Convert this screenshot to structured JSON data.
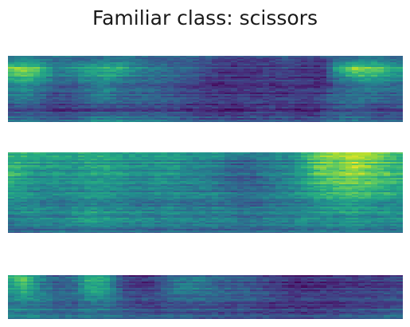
{
  "chart_data": {
    "type": "heatmap",
    "title": "Familiar class: scissors",
    "xlabel": "",
    "ylabel": "",
    "axes_visible": false,
    "colormap": "viridis",
    "panels": [
      {
        "name": "",
        "coarse_grid": [
          [
            0.3,
            0.35,
            0.3,
            0.35,
            0.3,
            0.25,
            0.3,
            0.35,
            0.3,
            0.25,
            0.25,
            0.3,
            0.25,
            0.2,
            0.2,
            0.2,
            0.2,
            0.25,
            0.2,
            0.2,
            0.25,
            0.25,
            0.3,
            0.3,
            0.25
          ],
          [
            0.75,
            0.85,
            0.7,
            0.4,
            0.5,
            0.6,
            0.65,
            0.6,
            0.45,
            0.4,
            0.35,
            0.3,
            0.25,
            0.15,
            0.15,
            0.15,
            0.2,
            0.2,
            0.15,
            0.1,
            0.6,
            0.85,
            0.8,
            0.7,
            0.55
          ],
          [
            0.55,
            0.6,
            0.5,
            0.35,
            0.35,
            0.45,
            0.5,
            0.4,
            0.35,
            0.35,
            0.3,
            0.25,
            0.2,
            0.15,
            0.15,
            0.2,
            0.2,
            0.2,
            0.2,
            0.15,
            0.3,
            0.45,
            0.5,
            0.45,
            0.4
          ],
          [
            0.35,
            0.4,
            0.3,
            0.2,
            0.25,
            0.35,
            0.4,
            0.3,
            0.3,
            0.3,
            0.25,
            0.2,
            0.15,
            0.15,
            0.15,
            0.15,
            0.15,
            0.15,
            0.15,
            0.2,
            0.3,
            0.35,
            0.35,
            0.3,
            0.3
          ],
          [
            0.2,
            0.25,
            0.2,
            0.15,
            0.15,
            0.2,
            0.2,
            0.2,
            0.2,
            0.2,
            0.2,
            0.15,
            0.15,
            0.1,
            0.1,
            0.15,
            0.15,
            0.15,
            0.1,
            0.15,
            0.25,
            0.25,
            0.2,
            0.2,
            0.2
          ],
          [
            0.4,
            0.45,
            0.4,
            0.35,
            0.4,
            0.5,
            0.55,
            0.5,
            0.5,
            0.45,
            0.4,
            0.35,
            0.3,
            0.3,
            0.3,
            0.3,
            0.3,
            0.3,
            0.25,
            0.3,
            0.4,
            0.4,
            0.35,
            0.35,
            0.35
          ]
        ]
      },
      {
        "name": "",
        "coarse_grid": [
          [
            0.55,
            0.6,
            0.55,
            0.55,
            0.55,
            0.6,
            0.55,
            0.5,
            0.5,
            0.55,
            0.5,
            0.45,
            0.5,
            0.45,
            0.4,
            0.35,
            0.45,
            0.4,
            0.55,
            0.75,
            0.8,
            0.85,
            0.8,
            0.7,
            0.6
          ],
          [
            0.65,
            0.6,
            0.55,
            0.55,
            0.5,
            0.6,
            0.6,
            0.55,
            0.5,
            0.5,
            0.55,
            0.45,
            0.45,
            0.4,
            0.3,
            0.35,
            0.45,
            0.45,
            0.6,
            0.8,
            0.75,
            0.9,
            0.8,
            0.7,
            0.65
          ],
          [
            0.7,
            0.55,
            0.5,
            0.5,
            0.5,
            0.55,
            0.55,
            0.5,
            0.45,
            0.5,
            0.5,
            0.45,
            0.45,
            0.35,
            0.3,
            0.3,
            0.4,
            0.45,
            0.55,
            0.7,
            0.75,
            0.8,
            0.75,
            0.7,
            0.65
          ],
          [
            0.55,
            0.5,
            0.45,
            0.45,
            0.45,
            0.5,
            0.5,
            0.45,
            0.45,
            0.45,
            0.45,
            0.4,
            0.45,
            0.4,
            0.35,
            0.35,
            0.4,
            0.45,
            0.5,
            0.6,
            0.65,
            0.7,
            0.65,
            0.6,
            0.55
          ],
          [
            0.45,
            0.5,
            0.45,
            0.4,
            0.45,
            0.5,
            0.45,
            0.45,
            0.4,
            0.4,
            0.45,
            0.4,
            0.4,
            0.4,
            0.35,
            0.35,
            0.4,
            0.4,
            0.45,
            0.5,
            0.55,
            0.55,
            0.5,
            0.5,
            0.5
          ],
          [
            0.4,
            0.45,
            0.5,
            0.45,
            0.5,
            0.6,
            0.55,
            0.5,
            0.5,
            0.45,
            0.5,
            0.45,
            0.45,
            0.45,
            0.4,
            0.4,
            0.45,
            0.45,
            0.5,
            0.5,
            0.5,
            0.55,
            0.5,
            0.5,
            0.5
          ],
          [
            0.3,
            0.25,
            0.3,
            0.35,
            0.3,
            0.3,
            0.3,
            0.3,
            0.3,
            0.3,
            0.3,
            0.3,
            0.3,
            0.3,
            0.3,
            0.3,
            0.3,
            0.3,
            0.35,
            0.35,
            0.35,
            0.4,
            0.35,
            0.35,
            0.35
          ]
        ]
      },
      {
        "name": "",
        "coarse_grid": [
          [
            0.6,
            0.75,
            0.45,
            0.3,
            0.35,
            0.6,
            0.55,
            0.2,
            0.15,
            0.2,
            0.35,
            0.4,
            0.35,
            0.3,
            0.3,
            0.25,
            0.2,
            0.15,
            0.15,
            0.15,
            0.15,
            0.15,
            0.2,
            0.2,
            0.2
          ],
          [
            0.55,
            0.7,
            0.45,
            0.3,
            0.35,
            0.65,
            0.6,
            0.2,
            0.15,
            0.2,
            0.4,
            0.45,
            0.4,
            0.3,
            0.3,
            0.25,
            0.2,
            0.15,
            0.1,
            0.15,
            0.15,
            0.15,
            0.15,
            0.2,
            0.2
          ],
          [
            0.4,
            0.5,
            0.4,
            0.3,
            0.3,
            0.45,
            0.4,
            0.25,
            0.2,
            0.2,
            0.3,
            0.3,
            0.3,
            0.3,
            0.25,
            0.25,
            0.2,
            0.15,
            0.15,
            0.15,
            0.15,
            0.2,
            0.2,
            0.2,
            0.2
          ],
          [
            0.45,
            0.45,
            0.4,
            0.35,
            0.35,
            0.4,
            0.4,
            0.3,
            0.25,
            0.25,
            0.3,
            0.3,
            0.3,
            0.25,
            0.25,
            0.25,
            0.2,
            0.2,
            0.2,
            0.2,
            0.2,
            0.25,
            0.25,
            0.25,
            0.3
          ],
          [
            0.4,
            0.45,
            0.4,
            0.35,
            0.35,
            0.4,
            0.35,
            0.3,
            0.3,
            0.3,
            0.3,
            0.3,
            0.25,
            0.25,
            0.25,
            0.25,
            0.25,
            0.25,
            0.2,
            0.25,
            0.25,
            0.3,
            0.3,
            0.35,
            0.35
          ]
        ]
      }
    ]
  }
}
